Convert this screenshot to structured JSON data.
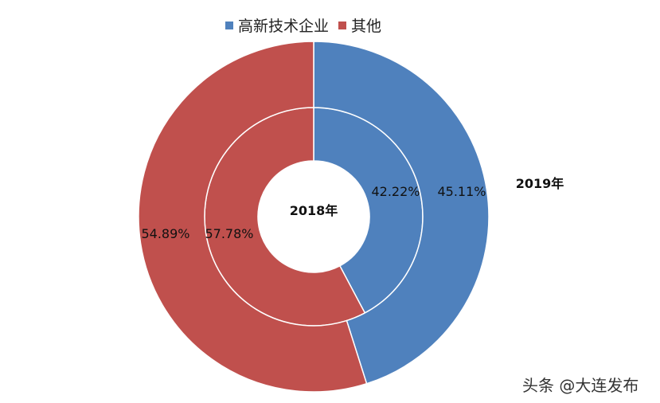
{
  "chart_data": {
    "type": "donut",
    "legend_position": "top",
    "categories": [
      "高新技术企业",
      "其他"
    ],
    "colors": [
      "#4F81BD",
      "#C0504D"
    ],
    "series": [
      {
        "name": "2018年",
        "ring": "inner",
        "values": [
          42.22,
          57.78
        ],
        "labels": [
          "42.22%",
          "57.78%"
        ]
      },
      {
        "name": "2019年",
        "ring": "outer",
        "values": [
          45.11,
          54.89
        ],
        "labels": [
          "45.11%",
          "54.89%"
        ]
      }
    ]
  },
  "watermark": "头条 @大连发布"
}
